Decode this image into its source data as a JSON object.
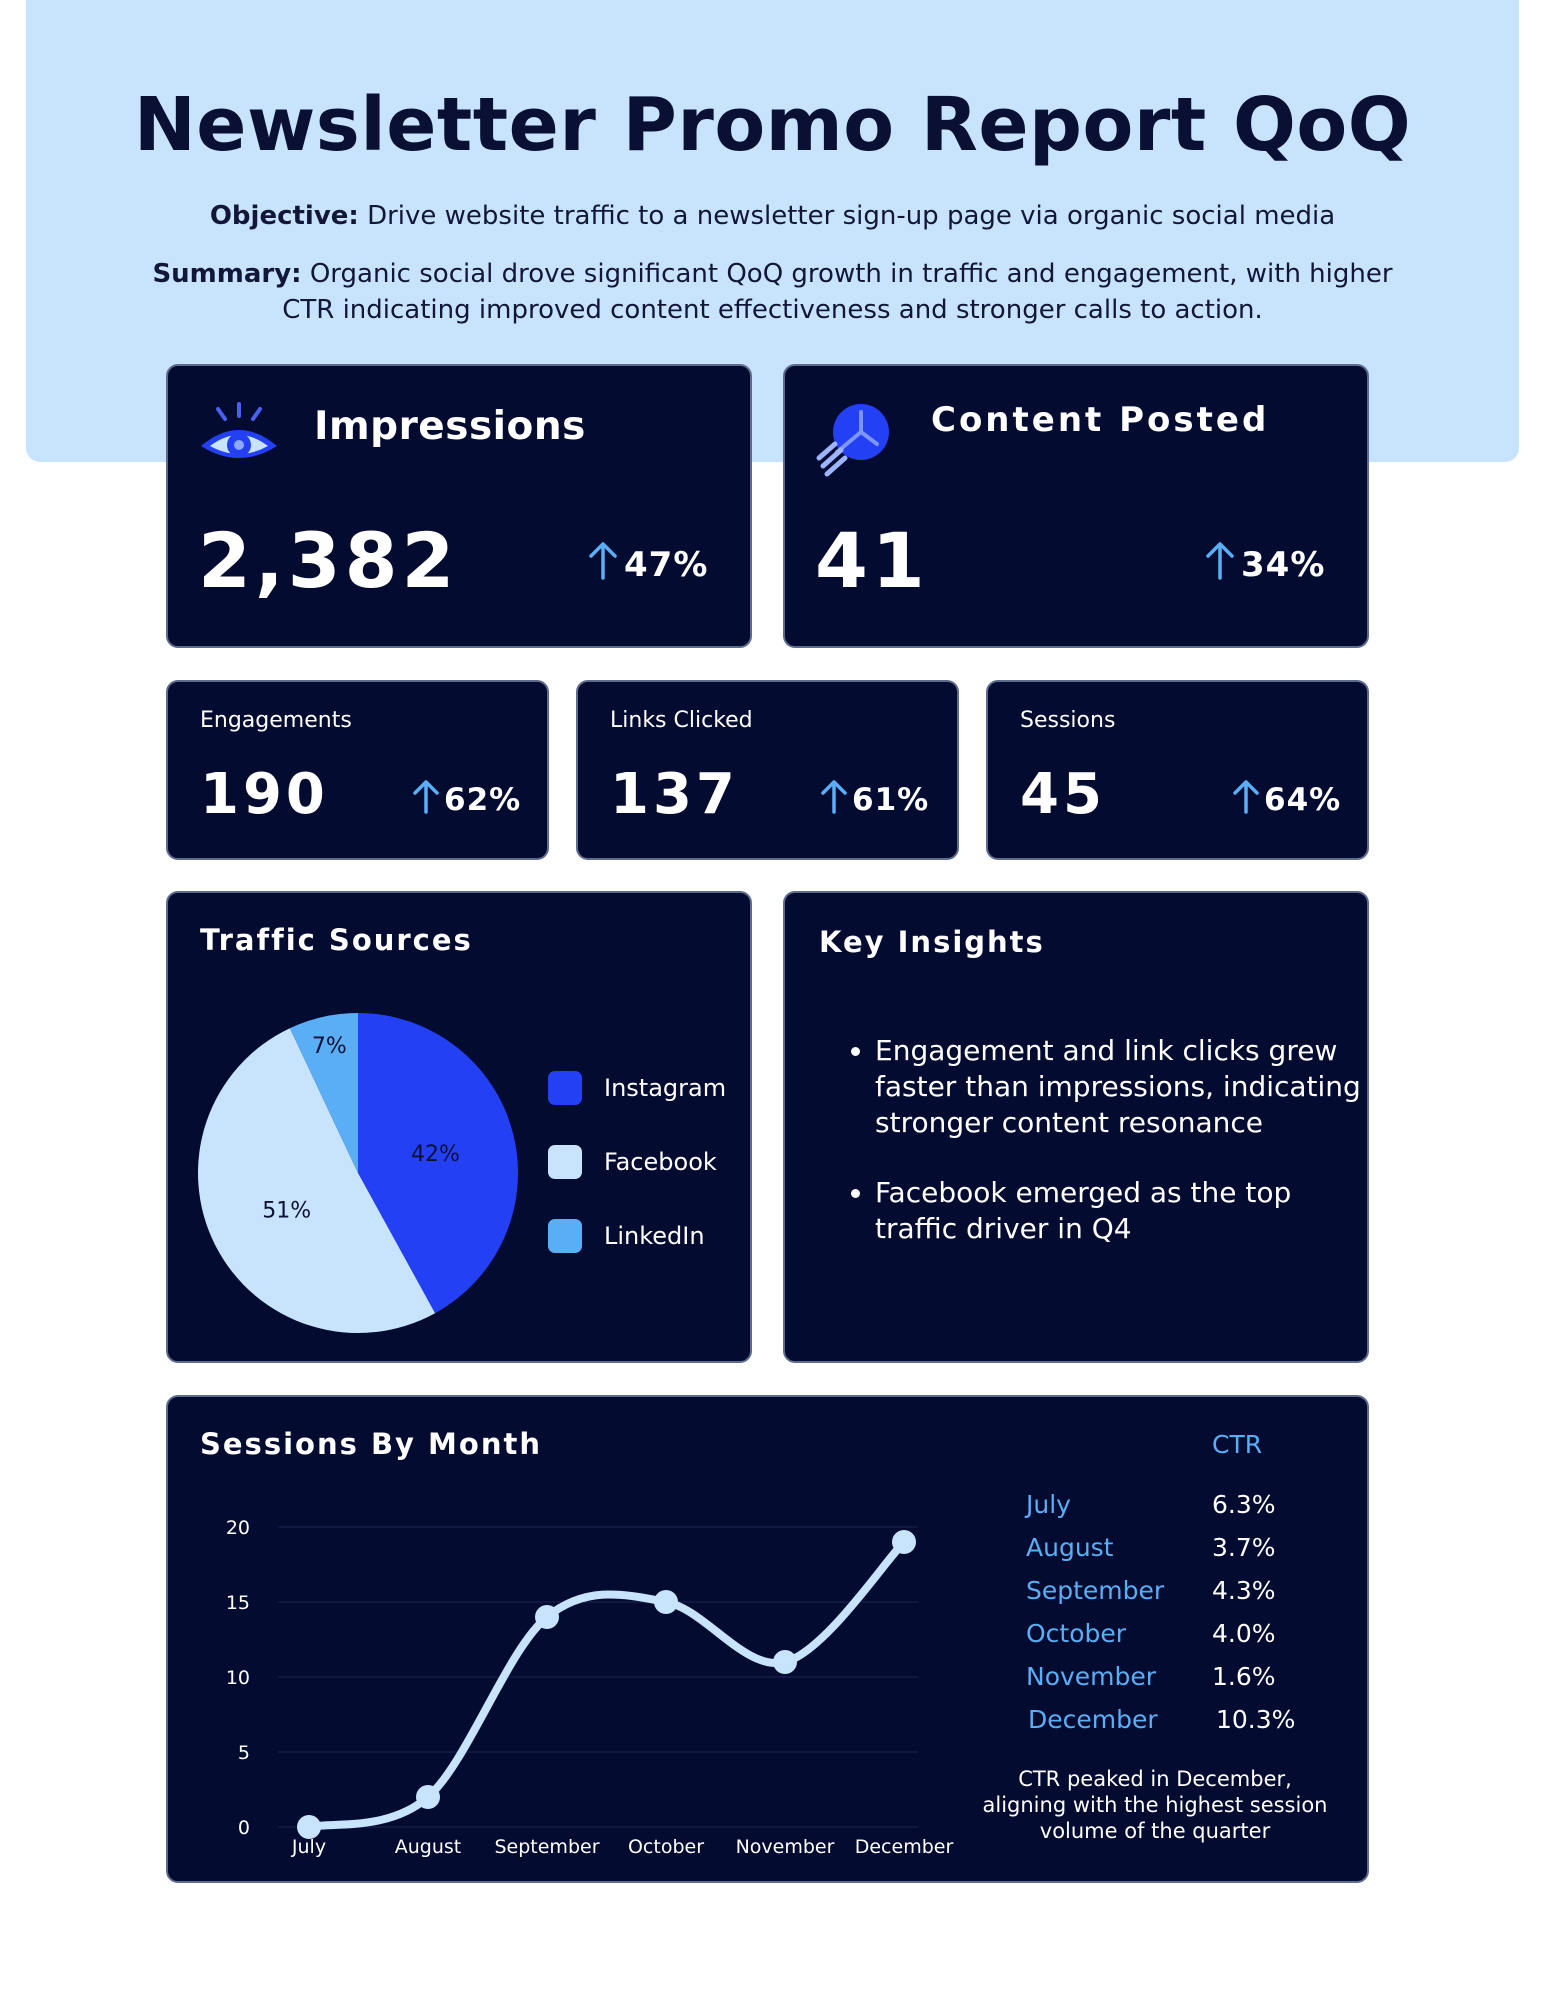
{
  "header": {
    "title": "Newsletter Promo Report QoQ",
    "objective_label": "Objective:",
    "objective_text": "Drive website traffic to a newsletter sign-up page via organic social media",
    "summary_label": "Summary:",
    "summary_text_1": "Organic social drove significant QoQ growth in traffic and engagement, with higher",
    "summary_text_2": "CTR indicating improved content effectiveness and stronger calls to action."
  },
  "impressions": {
    "label": "Impressions",
    "value": "2,382",
    "change": "47%",
    "icon": "eye-icon"
  },
  "content_posted": {
    "label": "Content Posted",
    "value": "41",
    "change": "34%",
    "icon": "lightbulb-icon"
  },
  "engagements": {
    "label": "Engagements",
    "value": "190",
    "change": "62%"
  },
  "links_clicked": {
    "label": "Links Clicked",
    "value": "137",
    "change": "61%"
  },
  "sessions": {
    "label": "Sessions",
    "value": "45",
    "change": "64%"
  },
  "traffic_sources": {
    "title": "Traffic Sources",
    "legend": [
      "Instagram",
      "Facebook",
      "LinkedIn"
    ]
  },
  "key_insights": {
    "title": "Key Insights",
    "items": [
      "Engagement and link clicks grew faster than impressions, indicating stronger content resonance",
      "Facebook emerged as the top traffic driver in Q4"
    ]
  },
  "sessions_by_month": {
    "title": "Sessions By Month"
  },
  "ctr": {
    "header": "CTR",
    "rows": [
      {
        "month": "July",
        "value": "6.3%"
      },
      {
        "month": "August",
        "value": "3.7%"
      },
      {
        "month": "September",
        "value": "4.3%"
      },
      {
        "month": "October",
        "value": "4.0%"
      },
      {
        "month": "November",
        "value": "1.6%"
      },
      {
        "month": "December",
        "value": "10.3%"
      }
    ],
    "note": "CTR peaked in December, aligning with the highest session volume of the quarter"
  },
  "colors": {
    "card_bg": "#040b30",
    "instagram": "#2440f5",
    "facebook": "#c8e4fc",
    "linkedin": "#5aaef5",
    "arrow": "#5aaef5"
  },
  "chart_data": [
    {
      "type": "pie",
      "title": "Traffic Sources",
      "labels": [
        "Instagram",
        "Facebook",
        "LinkedIn"
      ],
      "values": [
        42,
        51,
        7
      ],
      "value_labels": [
        "42%",
        "51%",
        "7%"
      ],
      "colors": [
        "#2440f5",
        "#c8e4fc",
        "#5aaef5"
      ]
    },
    {
      "type": "line",
      "title": "Sessions By Month",
      "categories": [
        "July",
        "August",
        "September",
        "October",
        "November",
        "December"
      ],
      "values": [
        0,
        2,
        14,
        15,
        11,
        19
      ],
      "ylim": [
        0,
        20
      ],
      "yticks": [
        0,
        5,
        10,
        15,
        20
      ],
      "xlabel": "",
      "ylabel": ""
    }
  ]
}
